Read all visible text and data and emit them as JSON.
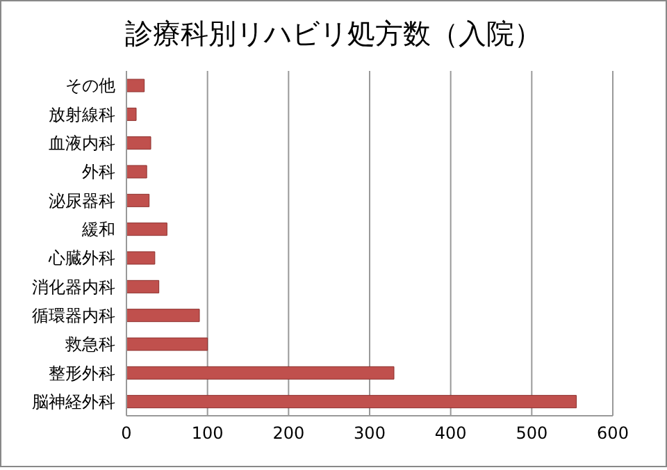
{
  "chart_data": {
    "type": "bar",
    "orientation": "horizontal",
    "title": "診療科別リハビリ処方数（入院）",
    "categories": [
      "その他",
      "放射線科",
      "血液内科",
      "外科",
      "泌尿器科",
      "緩和",
      "心臓外科",
      "消化器内科",
      "循環器内科",
      "救急科",
      "整形外科",
      "脳神経外科"
    ],
    "values": [
      22,
      12,
      30,
      25,
      28,
      50,
      35,
      40,
      90,
      100,
      330,
      555
    ],
    "color": "#c0504d",
    "xlim": [
      0,
      600
    ],
    "xticks": [
      0,
      100,
      200,
      300,
      400,
      500,
      600
    ],
    "grid": "x"
  }
}
